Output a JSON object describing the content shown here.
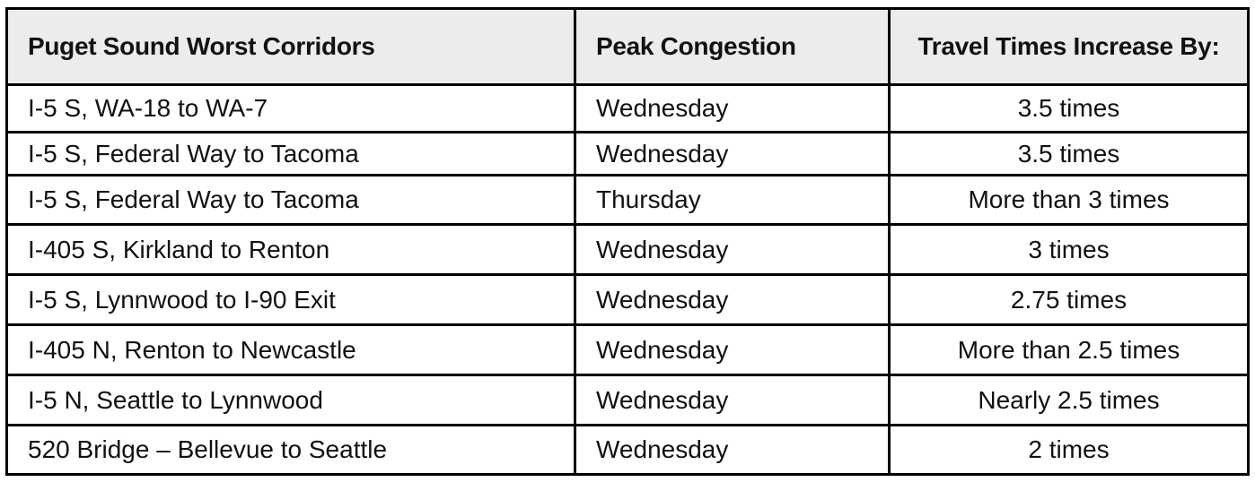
{
  "headers": [
    "Puget Sound Worst Corridors",
    "Peak Congestion",
    "Travel Times Increase By:"
  ],
  "rows": [
    [
      "I-5 S, WA-18 to WA-7",
      "Wednesday",
      "3.5 times"
    ],
    [
      "I-5 S, Federal Way to Tacoma",
      "Wednesday",
      "3.5 times"
    ],
    [
      "I-5 S, Federal Way to Tacoma",
      "Thursday",
      "More than 3 times"
    ],
    [
      "I-405 S, Kirkland to Renton",
      "Wednesday",
      "3 times"
    ],
    [
      "I-5 S, Lynnwood to I-90 Exit",
      "Wednesday",
      "2.75 times"
    ],
    [
      "I-405 N, Renton to Newcastle",
      "Wednesday",
      "More than 2.5 times"
    ],
    [
      "I-5 N, Seattle to Lynnwood",
      "Wednesday",
      "Nearly 2.5 times"
    ],
    [
      "520 Bridge – Bellevue to Seattle",
      "Wednesday",
      "2 times"
    ]
  ]
}
